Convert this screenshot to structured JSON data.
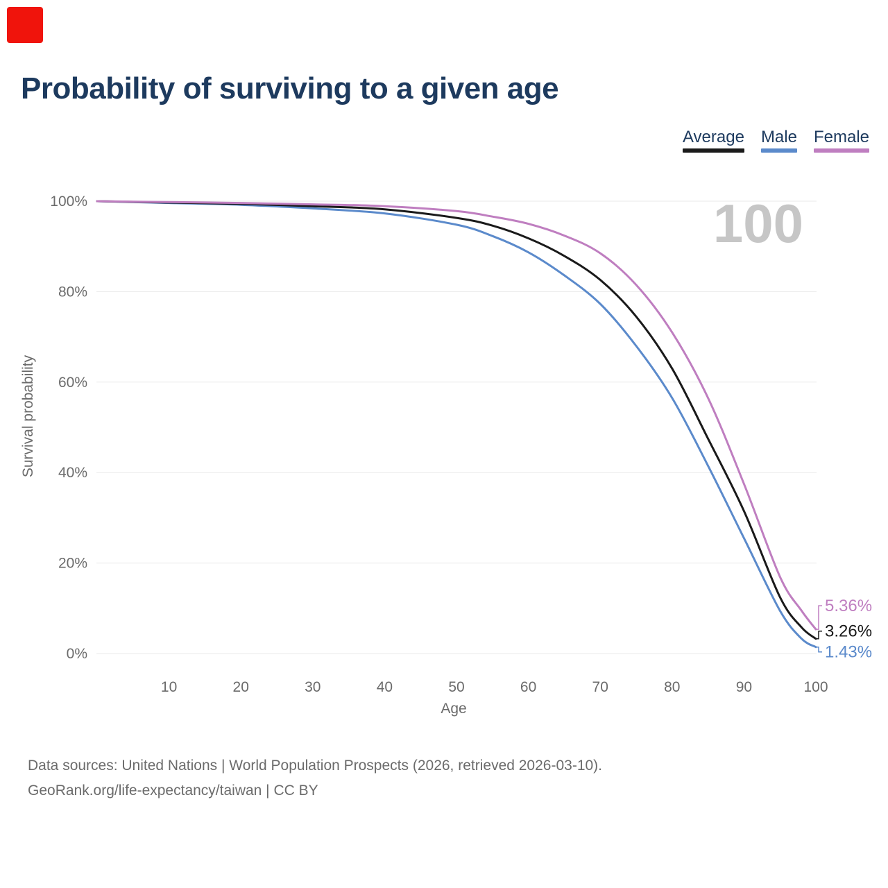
{
  "marker_color": "#f0140c",
  "title": "Probability of surviving to a given age",
  "legend": [
    {
      "label": "Average",
      "color": "#1a1a1a"
    },
    {
      "label": "Male",
      "color": "#5b8acb"
    },
    {
      "label": "Female",
      "color": "#bf7ec0"
    }
  ],
  "watermark": "100",
  "footer": {
    "line1": "Data sources: United Nations | World Population Prospects (2026, retrieved 2026-03-10).",
    "line2": "GeoRank.org/life-expectancy/taiwan | CC BY"
  },
  "chart_data": {
    "type": "line",
    "title": "Probability of surviving to a given age",
    "xlabel": "Age",
    "ylabel": "Survival probability",
    "xlim": [
      0,
      100
    ],
    "ylim": [
      0,
      100
    ],
    "grid": "horizontal",
    "legend_position": "top-right",
    "xticks": [
      10,
      20,
      30,
      40,
      50,
      60,
      70,
      80,
      90,
      100
    ],
    "yticks": [
      0,
      20,
      40,
      60,
      80,
      100
    ],
    "ytick_labels": [
      "0%",
      "20%",
      "40%",
      "60%",
      "80%",
      "100%"
    ],
    "x": [
      0,
      10,
      20,
      30,
      40,
      50,
      55,
      60,
      65,
      70,
      75,
      80,
      85,
      90,
      95,
      98,
      100
    ],
    "series": [
      {
        "name": "Average",
        "color": "#1a1a1a",
        "end_label": "3.26%",
        "values": [
          100,
          99.7,
          99.4,
          98.9,
          98.2,
          96.3,
          94.6,
          91.8,
          87.9,
          82.6,
          74.5,
          63.0,
          47.5,
          31.5,
          12.5,
          5.8,
          3.26
        ]
      },
      {
        "name": "Male",
        "color": "#5b8acb",
        "end_label": "1.43%",
        "values": [
          100,
          99.6,
          99.2,
          98.4,
          97.3,
          94.8,
          92.3,
          88.7,
          83.6,
          77.3,
          68.0,
          56.5,
          41.5,
          25.5,
          9.5,
          3.3,
          1.43
        ]
      },
      {
        "name": "Female",
        "color": "#bf7ec0",
        "end_label": "5.36%",
        "values": [
          100,
          99.8,
          99.6,
          99.3,
          98.9,
          97.8,
          96.6,
          95.0,
          92.4,
          88.5,
          81.5,
          71.0,
          56.5,
          37.5,
          17.0,
          9.5,
          5.36
        ]
      }
    ],
    "watermark_color": "#c6c6c6",
    "grid_color": "#eaeaea",
    "tick_color": "#6b6b6b"
  }
}
